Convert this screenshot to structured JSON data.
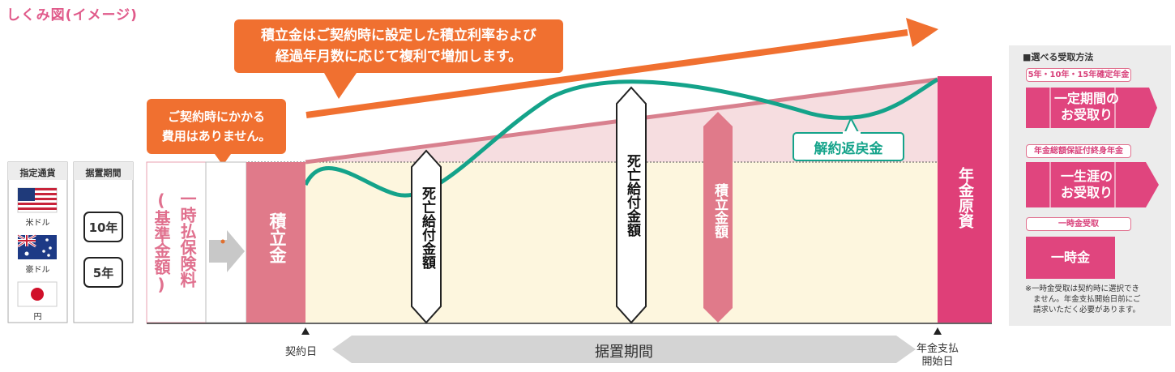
{
  "title": "しくみ図(イメージ)",
  "callout_main": {
    "line1": "積立金はご契約時に設定した積立利率および",
    "line2": "経過年月数に応じて複利で増加します。"
  },
  "callout_fee": {
    "line1": "ご契約時にかかる",
    "line2": "費用はありません。"
  },
  "currency": {
    "header": "指定通貨",
    "items": [
      {
        "label": "米ドル",
        "icon": "us-flag-icon"
      },
      {
        "label": "豪ドル",
        "icon": "au-flag-icon"
      },
      {
        "label": "円",
        "icon": "jp-flag-icon"
      }
    ]
  },
  "deferral": {
    "header": "据置期間",
    "options": [
      "10年",
      "5年"
    ]
  },
  "premium_label": {
    "line1": "一時払保険料",
    "line2": "(基準金額)"
  },
  "reserve_label": "積立金",
  "death_benefit_label": "死亡給付金額",
  "reserve_amount_label": "積立金額",
  "surrender_label": "解約返戻金",
  "annuity_principal_label": "年金原資",
  "timeline": {
    "start": "契約日",
    "period": "据置期間",
    "end_line1": "年金支払",
    "end_line2": "開始日"
  },
  "methods": {
    "header": "■選べる受取方法",
    "fixed_caption": "5年・10年・15年確定年金",
    "fixed_box": {
      "line1": "一定期間の",
      "line2": "お受取り"
    },
    "lifetime_caption": "年金総額保証付終身年金",
    "lifetime_box": {
      "line1": "一生涯の",
      "line2": "お受取り"
    },
    "lump_caption": "一時金受取",
    "lump_box": "一時金",
    "note": [
      "※一時金受取は契約時に選択でき",
      "ません。年金支払開始日前にご",
      "請求いただく必要があります。"
    ]
  },
  "colors": {
    "pink": "#e0457e",
    "reserve_pink": "#e07a8a",
    "orange": "#f07030",
    "teal": "#14a38a",
    "cream": "#fdf6de",
    "panel": "#ececec"
  }
}
